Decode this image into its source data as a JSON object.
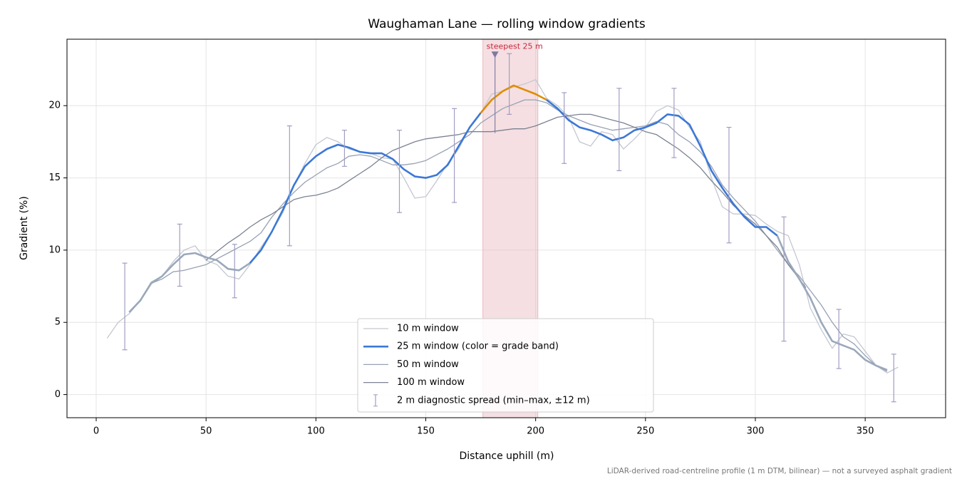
{
  "chart_data": {
    "type": "line",
    "title": "Waughaman Lane — rolling window gradients",
    "x_label": "Distance uphill (m)",
    "y_label": "Gradient (%)",
    "footnote": "LiDAR-derived road-centreline profile (1 m DTM, bilinear) — not a surveyed asphalt gradient",
    "xlim": [
      -13.3,
      386.6
    ],
    "ylim": [
      -1.6,
      24.6
    ],
    "xticks": [
      0,
      50,
      100,
      150,
      200,
      250,
      300,
      350
    ],
    "yticks": [
      0,
      5,
      10,
      15,
      20
    ],
    "grid": true,
    "legend": "lower center",
    "series": [
      {
        "name": "10 m window",
        "color": "#c3c7d1",
        "x": [
          5,
          10,
          15,
          20,
          25,
          30,
          35,
          40,
          45,
          50,
          55,
          60,
          65,
          70,
          75,
          80,
          85,
          90,
          95,
          100,
          105,
          110,
          115,
          120,
          125,
          130,
          135,
          140,
          145,
          150,
          155,
          160,
          165,
          170,
          175,
          180,
          185,
          190,
          195,
          200,
          205,
          210,
          215,
          220,
          225,
          230,
          235,
          240,
          245,
          250,
          255,
          260,
          265,
          270,
          275,
          280,
          285,
          290,
          295,
          300,
          305,
          310,
          315,
          320,
          325,
          330,
          335,
          340,
          345,
          350,
          355,
          360,
          365
        ],
        "values": [
          3.9,
          5.0,
          5.6,
          6.5,
          7.8,
          8.2,
          9.2,
          10.0,
          10.3,
          9.3,
          9.0,
          8.2,
          8.0,
          9.0,
          10.2,
          11.3,
          12.6,
          14.5,
          16.0,
          17.3,
          17.8,
          17.5,
          17.0,
          16.8,
          16.7,
          16.4,
          16.3,
          15.0,
          13.6,
          13.7,
          14.8,
          16.0,
          17.0,
          18.5,
          19.5,
          20.8,
          21.0,
          21.3,
          21.5,
          21.8,
          20.5,
          20.0,
          19.2,
          17.5,
          17.2,
          18.2,
          18.0,
          17.0,
          17.7,
          18.5,
          19.6,
          20.0,
          19.7,
          18.5,
          17.5,
          15.0,
          13.0,
          12.5,
          12.5,
          12.4,
          11.8,
          11.3,
          11.0,
          9.0,
          6.0,
          4.5,
          3.2,
          4.2,
          4.0,
          3.0,
          2.0,
          1.5,
          1.9
        ]
      },
      {
        "name": "25 m window (color = grade band)",
        "color": "#3b78d6",
        "grade_bands": [
          {
            "max": 10,
            "color": "#9aa8bb"
          },
          {
            "max": 20,
            "color": "#3b78d6"
          },
          {
            "color": "#e08c00"
          }
        ],
        "x": [
          15,
          20,
          25,
          30,
          35,
          40,
          45,
          50,
          55,
          60,
          65,
          70,
          75,
          80,
          85,
          90,
          95,
          100,
          105,
          110,
          115,
          120,
          125,
          130,
          135,
          140,
          145,
          150,
          155,
          160,
          165,
          170,
          175,
          180,
          185,
          190,
          195,
          200,
          205,
          210,
          215,
          220,
          225,
          230,
          235,
          240,
          245,
          250,
          255,
          260,
          265,
          270,
          275,
          280,
          285,
          290,
          295,
          300,
          305,
          310,
          315,
          320,
          325,
          330,
          335,
          340,
          345,
          350,
          355,
          360
        ],
        "values": [
          5.7,
          6.5,
          7.7,
          8.2,
          9.0,
          9.7,
          9.8,
          9.5,
          9.3,
          8.7,
          8.6,
          9.1,
          10.0,
          11.3,
          12.8,
          14.5,
          15.8,
          16.5,
          17.0,
          17.3,
          17.1,
          16.8,
          16.7,
          16.7,
          16.3,
          15.6,
          15.1,
          15.0,
          15.2,
          15.9,
          17.2,
          18.5,
          19.5,
          20.4,
          21.0,
          21.4,
          21.1,
          20.8,
          20.4,
          19.8,
          19.0,
          18.5,
          18.3,
          18.0,
          17.6,
          17.8,
          18.3,
          18.5,
          18.8,
          19.4,
          19.3,
          18.7,
          17.2,
          15.5,
          14.3,
          13.2,
          12.3,
          11.6,
          11.6,
          11.0,
          9.2,
          8.0,
          6.7,
          5.0,
          3.7,
          3.4,
          3.1,
          2.4,
          2.0,
          1.7
        ]
      },
      {
        "name": "50 m window",
        "color": "#98a1b3",
        "x": [
          25,
          30,
          35,
          40,
          45,
          50,
          55,
          60,
          65,
          70,
          75,
          80,
          85,
          90,
          95,
          100,
          105,
          110,
          115,
          120,
          125,
          130,
          135,
          140,
          145,
          150,
          155,
          160,
          165,
          170,
          175,
          180,
          185,
          190,
          195,
          200,
          205,
          210,
          215,
          220,
          225,
          230,
          235,
          240,
          245,
          250,
          255,
          260,
          265,
          270,
          275,
          280,
          285,
          290,
          295,
          300,
          305,
          310,
          315,
          320,
          325,
          330,
          335,
          340,
          345,
          350,
          355,
          360
        ],
        "values": [
          7.7,
          8.0,
          8.5,
          8.6,
          8.8,
          9.0,
          9.4,
          9.8,
          10.2,
          10.6,
          11.2,
          12.3,
          13.2,
          14.0,
          14.7,
          15.2,
          15.7,
          16.0,
          16.5,
          16.6,
          16.5,
          16.2,
          15.9,
          15.9,
          16.0,
          16.2,
          16.6,
          17.0,
          17.5,
          18.0,
          18.8,
          19.3,
          19.8,
          20.1,
          20.4,
          20.4,
          20.2,
          19.7,
          19.3,
          19.0,
          18.7,
          18.5,
          18.3,
          18.4,
          18.5,
          18.6,
          18.9,
          18.7,
          18.0,
          17.5,
          16.8,
          15.8,
          14.5,
          13.6,
          12.8,
          12.0,
          11.0,
          10.0,
          9.0,
          8.2,
          7.2,
          6.2,
          5.0,
          4.0,
          3.5,
          2.7,
          2.0,
          1.6
        ]
      },
      {
        "name": "100 m window",
        "color": "#7b8292",
        "x": [
          50,
          55,
          60,
          65,
          70,
          75,
          80,
          85,
          90,
          95,
          100,
          105,
          110,
          115,
          120,
          125,
          130,
          135,
          140,
          145,
          150,
          155,
          160,
          165,
          170,
          175,
          180,
          185,
          190,
          195,
          200,
          205,
          210,
          215,
          220,
          225,
          230,
          235,
          240,
          245,
          250,
          255,
          260,
          265,
          270,
          275,
          280,
          285,
          290,
          295,
          300,
          305,
          310,
          315,
          320,
          323
        ],
        "values": [
          9.3,
          9.9,
          10.5,
          11.0,
          11.6,
          12.1,
          12.5,
          13.0,
          13.5,
          13.7,
          13.8,
          14.0,
          14.3,
          14.8,
          15.3,
          15.8,
          16.4,
          16.9,
          17.2,
          17.5,
          17.7,
          17.8,
          17.9,
          18.0,
          18.2,
          18.2,
          18.2,
          18.3,
          18.4,
          18.4,
          18.6,
          18.9,
          19.2,
          19.3,
          19.4,
          19.4,
          19.2,
          19.0,
          18.8,
          18.5,
          18.2,
          18.0,
          17.5,
          17.0,
          16.4,
          15.7,
          14.8,
          14.0,
          13.1,
          12.4,
          11.8,
          11.0,
          10.2,
          9.0,
          8.0,
          7.4
        ]
      }
    ],
    "error_bars": {
      "name": "2 m diagnostic spread (min–max, ±12 m)",
      "color": "#a19dc2",
      "x": [
        13,
        38,
        63,
        88,
        113,
        138,
        163,
        188,
        213,
        238,
        263,
        288,
        313,
        338,
        363
      ],
      "low": [
        3.1,
        7.5,
        6.7,
        10.3,
        15.8,
        12.6,
        13.3,
        19.4,
        16.0,
        15.5,
        16.4,
        10.5,
        3.7,
        1.8,
        -0.5
      ],
      "high": [
        9.1,
        11.8,
        10.4,
        18.6,
        18.3,
        18.3,
        19.8,
        23.6,
        20.9,
        21.2,
        21.2,
        18.5,
        12.3,
        5.9,
        2.8
      ]
    },
    "highlight": {
      "span": [
        176,
        201
      ],
      "color": "#e8b8bf",
      "annotation": {
        "text": "steepest 25 m",
        "x": 181.5,
        "y": 23.5,
        "low": 18.1,
        "color": "#c8283c"
      }
    }
  }
}
